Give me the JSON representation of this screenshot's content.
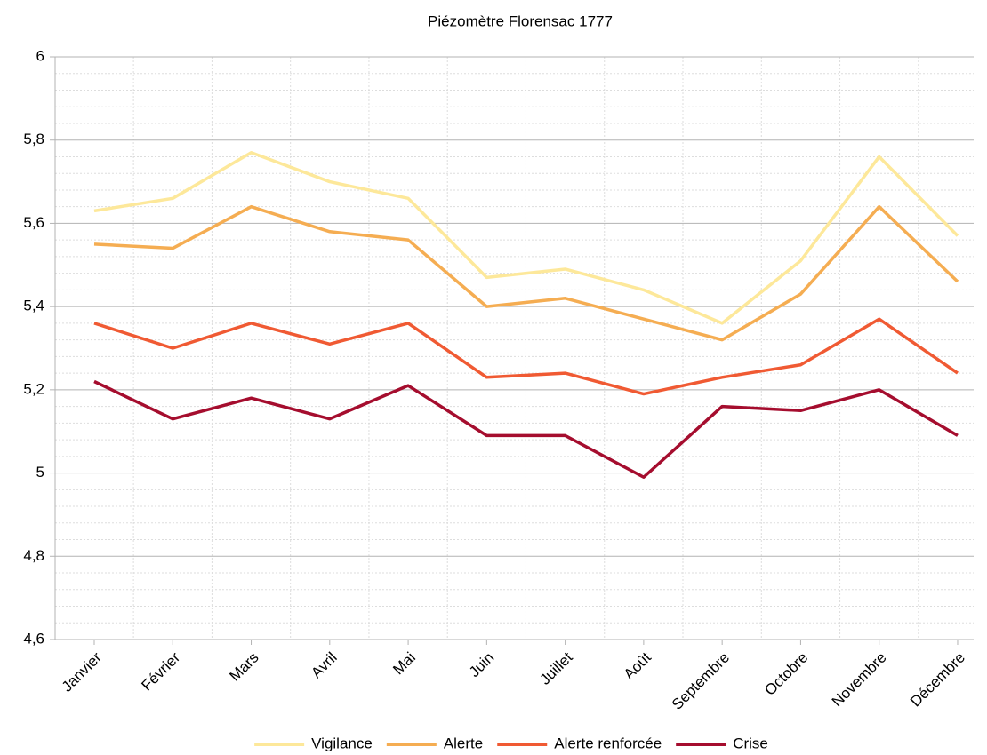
{
  "chart_data": {
    "type": "line",
    "title": "Piézomètre Florensac 1777",
    "categories": [
      "Janvier",
      "Février",
      "Mars",
      "Avril",
      "Mai",
      "Juin",
      "Juillet",
      "Août",
      "Septembre",
      "Octobre",
      "Novembre",
      "Décembre"
    ],
    "series": [
      {
        "name": "Vigilance",
        "color": "#fde89a",
        "values": [
          5.63,
          5.66,
          5.77,
          5.7,
          5.66,
          5.47,
          5.49,
          5.44,
          5.36,
          5.51,
          5.76,
          5.57
        ]
      },
      {
        "name": "Alerte",
        "color": "#f5ad52",
        "values": [
          5.55,
          5.54,
          5.64,
          5.58,
          5.56,
          5.4,
          5.42,
          5.37,
          5.32,
          5.43,
          5.64,
          5.46
        ]
      },
      {
        "name": "Alerte renforcée",
        "color": "#f05a33",
        "values": [
          5.36,
          5.3,
          5.36,
          5.31,
          5.36,
          5.23,
          5.24,
          5.19,
          5.23,
          5.26,
          5.37,
          5.24
        ]
      },
      {
        "name": "Crise",
        "color": "#a50d2e",
        "values": [
          5.22,
          5.13,
          5.18,
          5.13,
          5.21,
          5.09,
          5.09,
          4.99,
          5.16,
          5.15,
          5.2,
          5.09
        ]
      }
    ],
    "ylim": [
      4.6,
      6
    ],
    "yticks": [
      {
        "value": 4.6,
        "label": "4,6"
      },
      {
        "value": 4.8,
        "label": "4,8"
      },
      5,
      {
        "value": 5.2,
        "label": "5,2"
      },
      {
        "value": 5.4,
        "label": "5,4"
      },
      {
        "value": 5.6,
        "label": "5,6"
      },
      {
        "value": 5.8,
        "label": "5,8"
      },
      6
    ],
    "grid": true,
    "legend": "bottom"
  }
}
